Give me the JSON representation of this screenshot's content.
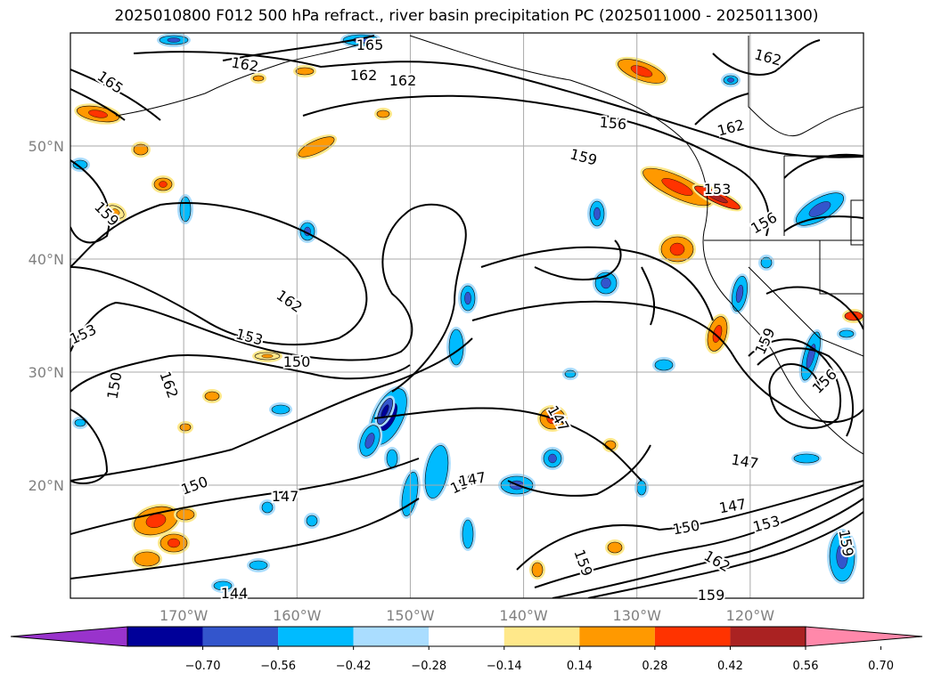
{
  "title": "2025010800 F012 500 hPa refract., river basin precipitation PC (2025011000 - 2025011300)",
  "map": {
    "lat_labels": [
      "50°N",
      "40°N",
      "30°N",
      "20°N"
    ],
    "lon_labels": [
      "170°W",
      "160°W",
      "150°W",
      "140°W",
      "130°W",
      "120°W"
    ],
    "grid": true,
    "extent": {
      "lon_west": -180,
      "lon_east": -110,
      "lat_south": 10,
      "lat_north": 60
    }
  },
  "contour_labels": [
    "165",
    "165",
    "162",
    "162",
    "162",
    "162",
    "162",
    "162",
    "156",
    "159",
    "159",
    "153",
    "156",
    "162",
    "153",
    "153",
    "150",
    "150",
    "156",
    "147",
    "147",
    "147",
    "147",
    "150",
    "150",
    "147",
    "153",
    "159",
    "162",
    "159",
    "159",
    "144",
    "156",
    "159"
  ],
  "colorbar": {
    "ticks": [
      "−0.70",
      "−0.56",
      "−0.42",
      "−0.28",
      "−0.14",
      "0.14",
      "0.28",
      "0.42",
      "0.56",
      "0.70"
    ],
    "colors": [
      "#9933cc",
      "#000099",
      "#3355cc",
      "#00bbff",
      "#aaddff",
      "#ffffff",
      "#ffe88a",
      "#ff9900",
      "#ff3300",
      "#aa2222",
      "#ff88aa"
    ]
  },
  "chart_data": {
    "type": "heatmap",
    "title": "2025010800 F012 500 hPa refract., river basin precipitation PC (2025011000 - 2025011300)",
    "contour_levels": [
      144,
      147,
      150,
      153,
      156,
      159,
      162,
      165
    ],
    "color_levels": [
      -0.7,
      -0.56,
      -0.42,
      -0.28,
      -0.14,
      0.14,
      0.28,
      0.42,
      0.56,
      0.7
    ],
    "x_ticks": [
      "170°W",
      "160°W",
      "150°W",
      "140°W",
      "130°W",
      "120°W"
    ],
    "y_ticks": [
      "50°N",
      "40°N",
      "30°N",
      "20°N"
    ]
  }
}
